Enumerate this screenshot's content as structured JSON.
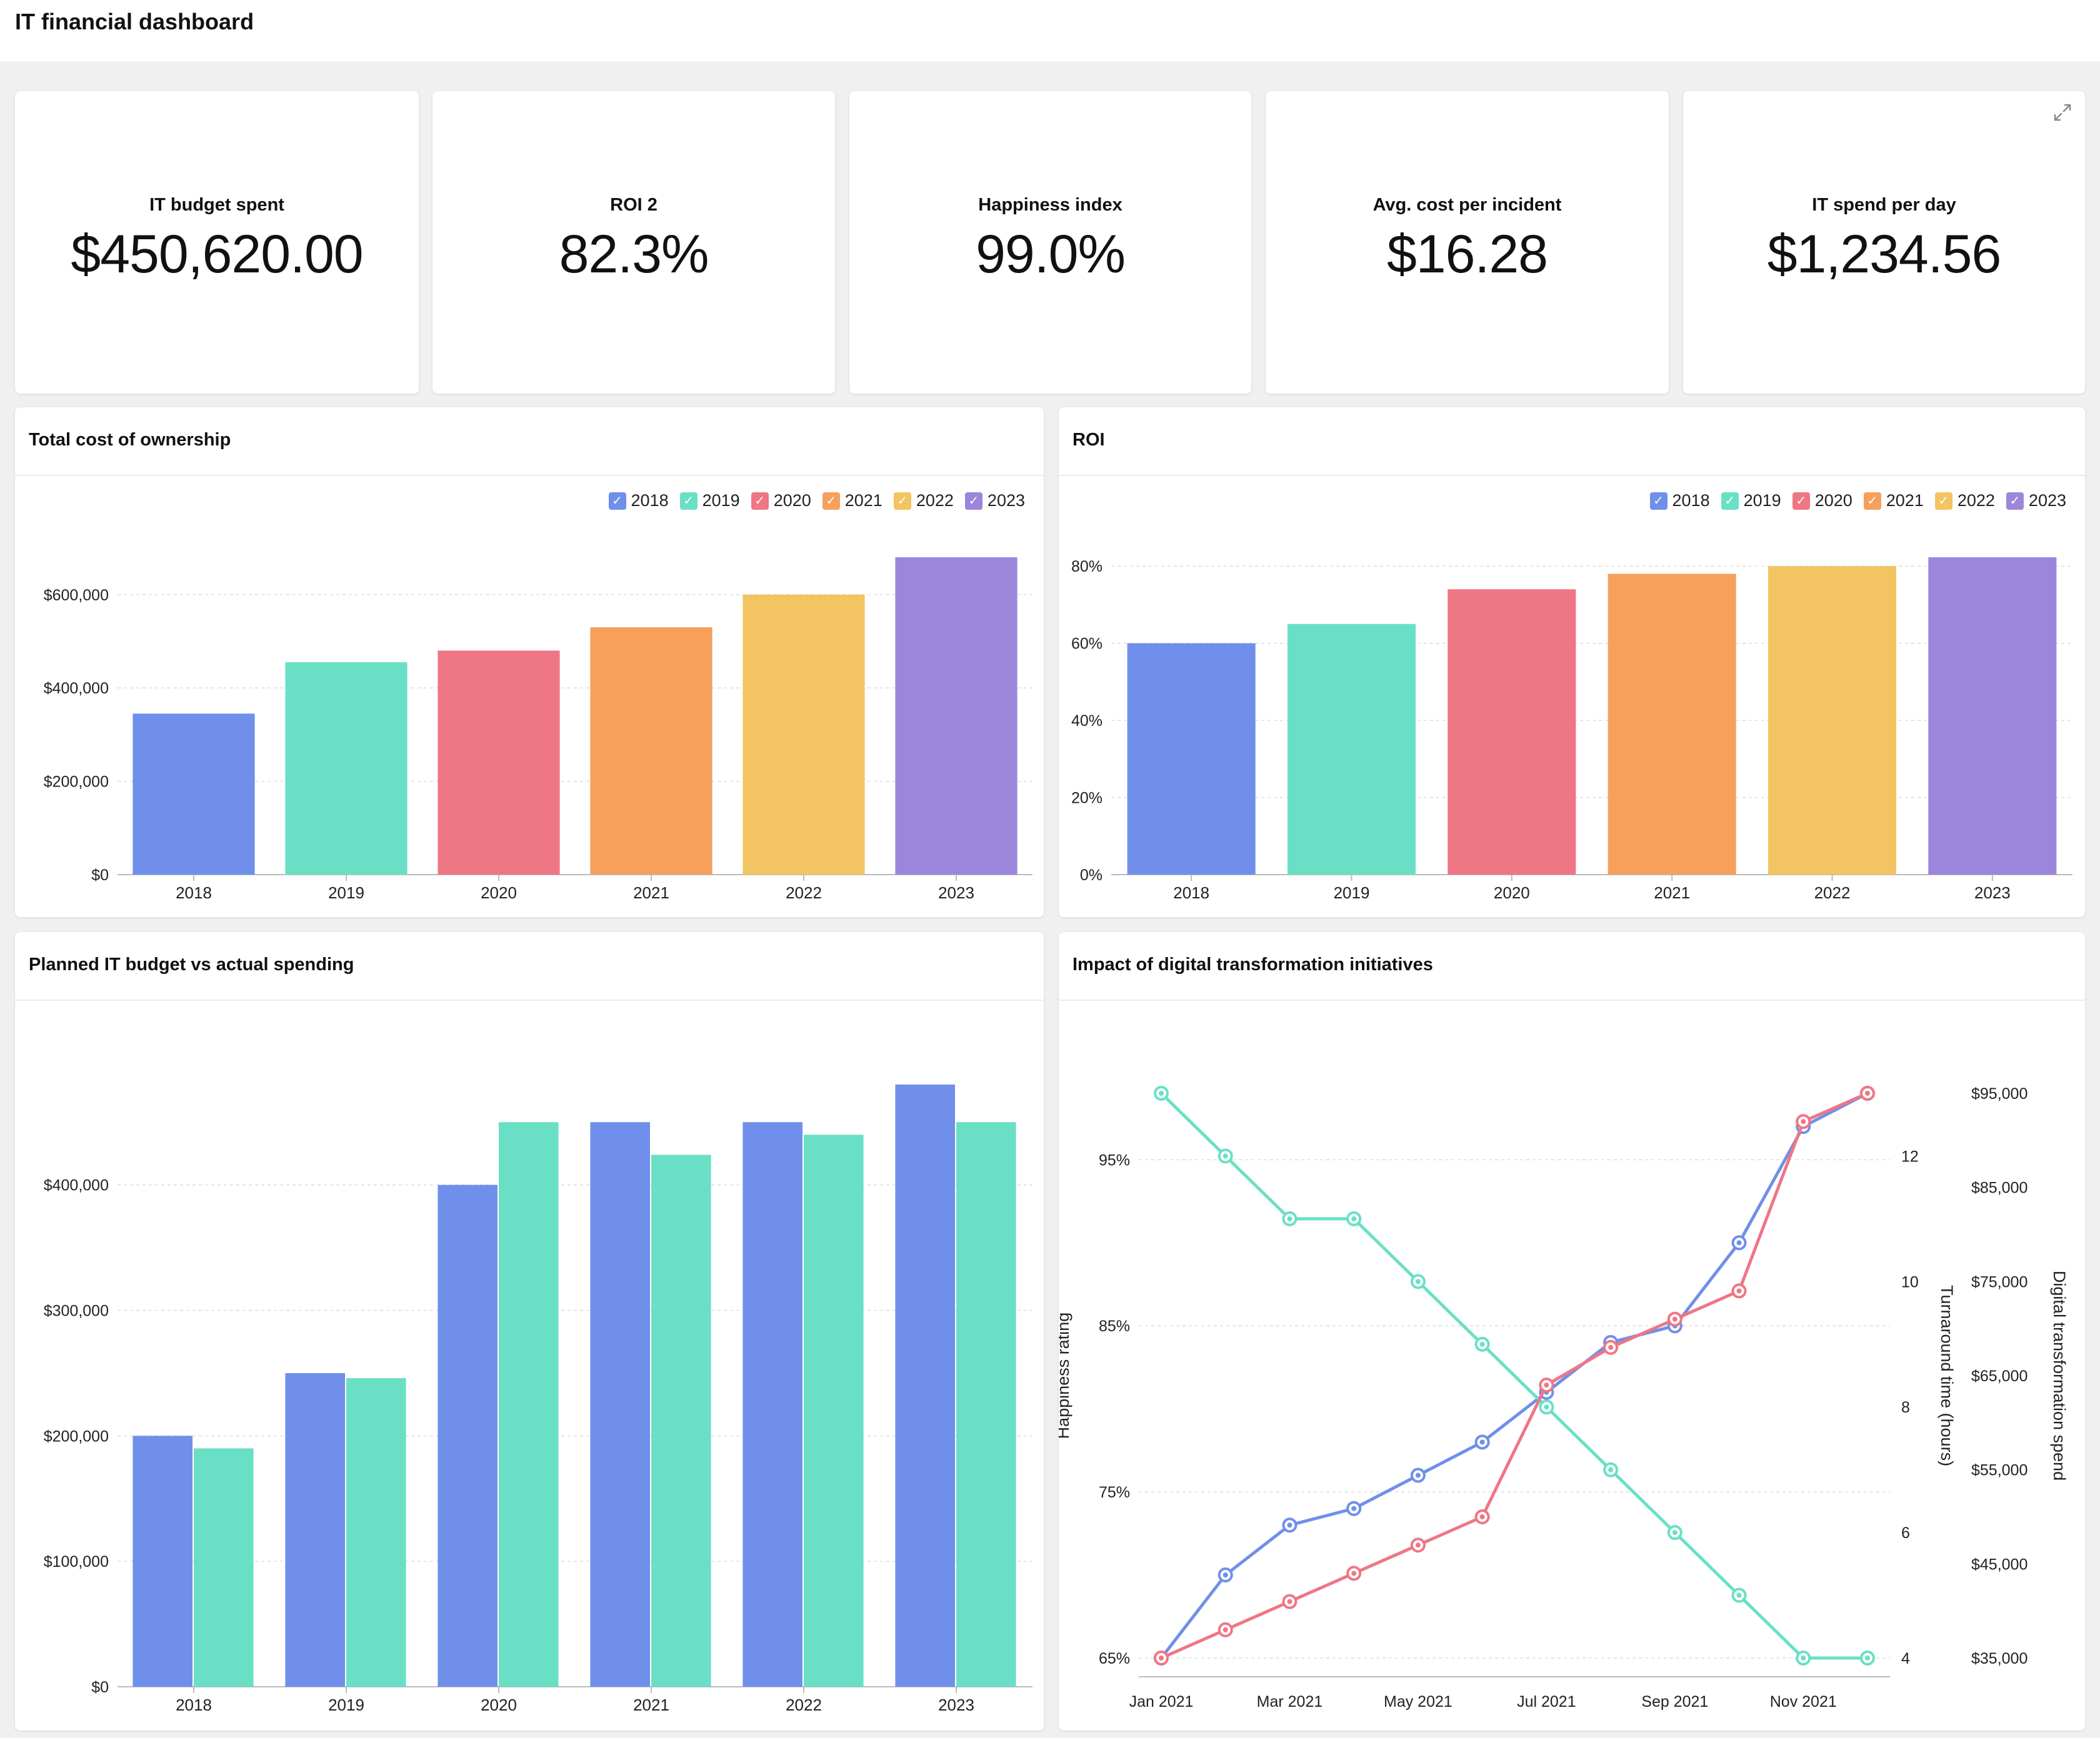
{
  "header": {
    "title": "IT financial dashboard"
  },
  "kpis": [
    {
      "label": "IT budget spent",
      "value": "$450,620.00"
    },
    {
      "label": "ROI 2",
      "value": "82.3%"
    },
    {
      "label": "Happiness index",
      "value": "99.0%"
    },
    {
      "label": "Avg. cost per incident",
      "value": "$16.28"
    },
    {
      "label": "IT spend per day",
      "value": "$1,234.56"
    }
  ],
  "icons": {
    "expand": "expand-icon",
    "legend_check": "check-icon"
  },
  "colors": {
    "blue": "#6f8fea",
    "teal": "#69e0c6",
    "red": "#ef7685",
    "orange": "#f6a05c",
    "yellow": "#f2c462",
    "purple": "#9b86dc",
    "grid": "#dddddd",
    "axis": "#999999"
  },
  "legend_check_mark": "✓",
  "panels": {
    "tco": {
      "title": "Total cost of ownership"
    },
    "roi": {
      "title": "ROI"
    },
    "planned": {
      "title": "Planned IT budget vs actual spending"
    },
    "impact": {
      "title": "Impact of digital transformation initiatives"
    }
  },
  "chart_data": [
    {
      "id": "tco",
      "type": "bar",
      "title": "Total cost of ownership",
      "categories": [
        "2018",
        "2019",
        "2020",
        "2021",
        "2022",
        "2023"
      ],
      "values": [
        345000,
        455000,
        480000,
        530000,
        600000,
        680000
      ],
      "legend": [
        "2018",
        "2019",
        "2020",
        "2021",
        "2022",
        "2023"
      ],
      "legend_placement": "top-right",
      "y_ticks": [
        0,
        200000,
        400000,
        600000
      ],
      "y_tick_labels": [
        "$0",
        "$200,000",
        "$400,000",
        "$600,000"
      ],
      "ylim": [
        0,
        680000
      ],
      "grid": true
    },
    {
      "id": "roi",
      "type": "bar",
      "title": "ROI",
      "categories": [
        "2018",
        "2019",
        "2020",
        "2021",
        "2022",
        "2023"
      ],
      "values": [
        60,
        65,
        74,
        78,
        80,
        82.3
      ],
      "legend": [
        "2018",
        "2019",
        "2020",
        "2021",
        "2022",
        "2023"
      ],
      "legend_placement": "top-right",
      "y_ticks": [
        0,
        20,
        40,
        60,
        80
      ],
      "y_tick_labels": [
        "0%",
        "20%",
        "40%",
        "60%",
        "80%"
      ],
      "ylim": [
        0,
        82.3
      ],
      "grid": true
    },
    {
      "id": "planned",
      "type": "bar",
      "title": "Planned IT budget vs actual spending",
      "categories": [
        "2018",
        "2019",
        "2020",
        "2021",
        "2022",
        "2023"
      ],
      "series": [
        {
          "values": [
            200000,
            250000,
            400000,
            450000,
            450000,
            480000
          ]
        },
        {
          "values": [
            190000,
            246000,
            450000,
            424000,
            440000,
            450000
          ]
        }
      ],
      "y_ticks": [
        0,
        100000,
        200000,
        300000,
        400000
      ],
      "y_tick_labels": [
        "$0",
        "$100,000",
        "$200,000",
        "$300,000",
        "$400,000"
      ],
      "ylim": [
        0,
        480000
      ],
      "grid": true
    },
    {
      "id": "impact",
      "type": "line",
      "title": "Impact of digital transformation initiatives",
      "x": [
        "Jan 2021",
        "Feb 2021",
        "Mar 2021",
        "Apr 2021",
        "May 2021",
        "Jun 2021",
        "Jul 2021",
        "Aug 2021",
        "Sep 2021",
        "Oct 2021",
        "Nov 2021",
        "Dec 2021"
      ],
      "x_tick_labels": [
        "Jan 2021",
        "Mar 2021",
        "May 2021",
        "Jul 2021",
        "Sep 2021",
        "Nov 2021"
      ],
      "axes": {
        "left": {
          "label": "Happiness rating",
          "ticks": [
            "65%",
            "75%",
            "85%",
            "95%"
          ],
          "range": [
            65,
            99
          ]
        },
        "right1": {
          "label": "Turnaround time (hours)",
          "ticks": [
            "4",
            "6",
            "8",
            "10",
            "12"
          ],
          "range": [
            4,
            13
          ]
        },
        "right2": {
          "label": "Digital transformation spend",
          "ticks": [
            "$35,000",
            "$45,000",
            "$55,000",
            "$65,000",
            "$75,000",
            "$85,000",
            "$95,000"
          ],
          "range": [
            35000,
            95000
          ]
        }
      },
      "series": [
        {
          "axis": "left",
          "color": "#6f8fea",
          "values": [
            65,
            70,
            73,
            74,
            76,
            78,
            81,
            84,
            85,
            90,
            97,
            99
          ]
        },
        {
          "axis": "right1",
          "color": "#69e0c6",
          "values": [
            13,
            12,
            11,
            11,
            10,
            9,
            8,
            7,
            6,
            5,
            4,
            4
          ]
        },
        {
          "axis": "right2",
          "color": "#ef7685",
          "values": [
            35000,
            38000,
            41000,
            44000,
            47000,
            50000,
            64000,
            68000,
            71000,
            74000,
            92000,
            95000
          ]
        }
      ],
      "grid": true
    }
  ]
}
